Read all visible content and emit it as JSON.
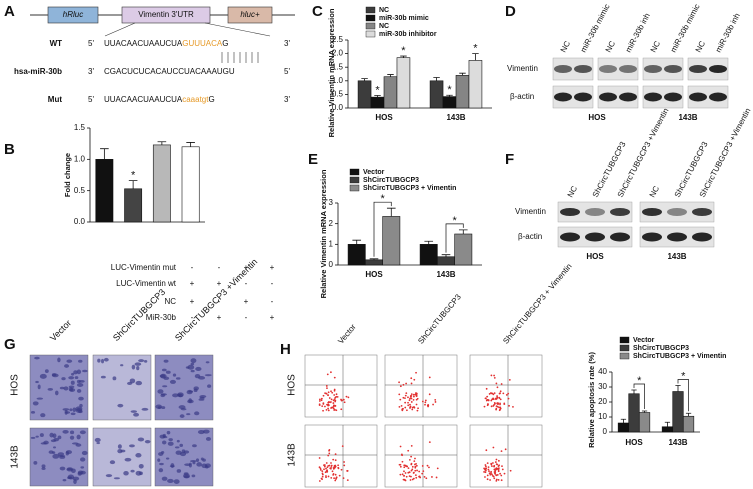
{
  "panel_letters": [
    "A",
    "B",
    "C",
    "D",
    "E",
    "F",
    "G",
    "H"
  ],
  "panel_a": {
    "construct": [
      "hRluc",
      "Vimentin 3'UTR",
      "hluc+"
    ],
    "rows": [
      {
        "label": "WT",
        "left": "5'",
        "sequence": [
          "UUACAACUAAUCUA",
          "GUUUACA",
          "G"
        ],
        "right": "3'"
      },
      {
        "label": "hsa-miR-30b",
        "left": "3'",
        "sequence": [
          "CGACUCUCACAUCCUACAAAUGU"
        ],
        "right": "5'"
      },
      {
        "label": "Mut",
        "left": "5'",
        "sequence": [
          "UUACAACUAAUCUA",
          "caaatgt",
          "G"
        ],
        "right": "3'"
      }
    ]
  },
  "panel_d": {
    "lanes": [
      "NC",
      "miR-30b mimic",
      "NC",
      "miR-30b inh",
      "NC",
      "miR-30b mimic",
      "NC",
      "miR-30b inh"
    ],
    "rows": [
      "Vimentin",
      "β-actin"
    ],
    "cells": [
      "HOS",
      "143B"
    ]
  },
  "panel_f": {
    "lanes": [
      "NC",
      "ShCircTUBGCP3",
      "ShCircTUBGCP3 +Vimentin",
      "NC",
      "ShCircTUBGCP3",
      "ShCircTUBGCP3 +Vimentin"
    ],
    "rows": [
      "Vimentin",
      "β-actin"
    ],
    "cells": [
      "HOS",
      "143B"
    ]
  },
  "panel_g": {
    "columns": [
      "Vector",
      "ShCircTUBGCP3",
      "ShCircTUBGCP3 +Vimentin"
    ],
    "rows": [
      "HOS",
      "143B"
    ]
  },
  "panel_h": {
    "columns": [
      "Vector",
      "ShCircTUBGCP3",
      "ShCircTUBGCP3 + Vimentin"
    ],
    "rows": [
      "HOS",
      "143B"
    ]
  },
  "chart_data": [
    {
      "type": "bar",
      "y_label": "Fold change",
      "values": [
        1.0,
        0.53,
        1.23,
        1.2
      ],
      "errors": [
        0.17,
        0.13,
        0.05,
        0.07
      ],
      "colors": [
        "#111111",
        "#444444",
        "#b8b8b8",
        "#ffffff"
      ],
      "significance": [
        null,
        "*",
        null,
        null
      ],
      "ylim": [
        0,
        1.5
      ],
      "yticks": [
        {
          "value": 0,
          "label": "0.0"
        },
        0.5,
        {
          "value": 1,
          "label": "1.0"
        },
        1.5
      ],
      "conditions": [
        {
          "label": "LUC-Vimentin mut",
          "signs": [
            "-",
            "-",
            "+",
            "+"
          ]
        },
        {
          "label": "LUC-Vimentin wt",
          "signs": [
            "+",
            "+",
            "-",
            "-"
          ]
        },
        {
          "label": "NC",
          "signs": [
            "+",
            "-",
            "+",
            "-"
          ]
        },
        {
          "label": "MiR-30b",
          "signs": [
            "-",
            "+",
            "-",
            "+"
          ]
        }
      ]
    },
    {
      "type": "bar",
      "y_label": "Relative Vimentin mRNA expression",
      "categories": [
        "HOS",
        "143B"
      ],
      "series": [
        {
          "name": "NC",
          "color": "#3c3c3c",
          "values": [
            1.0,
            1.0
          ],
          "errors": [
            0.08,
            0.12
          ]
        },
        {
          "name": "miR-30b mimic",
          "color": "#111111",
          "values": [
            0.4,
            0.42
          ],
          "errors": [
            0.06,
            0.05
          ],
          "significance": [
            "*",
            "*"
          ]
        },
        {
          "name": "NC",
          "color": "#858585",
          "values": [
            1.15,
            1.2
          ],
          "errors": [
            0.08,
            0.08
          ]
        },
        {
          "name": "miR-30b inhibitor",
          "color": "#dcdcdc",
          "values": [
            1.85,
            1.75
          ],
          "errors": [
            0.06,
            0.25
          ],
          "significance": [
            "*",
            "*"
          ]
        }
      ],
      "ylim": [
        0,
        2.5
      ],
      "yticks": [
        {
          "value": 0,
          "label": "0.0"
        },
        0.5,
        {
          "value": 1,
          "label": "1.0"
        },
        1.5,
        {
          "value": 2,
          "label": "2.0"
        },
        2.5
      ]
    },
    {
      "type": "bar",
      "y_label": "Relative Vimentin mRNA expression",
      "categories": [
        "HOS",
        "143B"
      ],
      "series": [
        {
          "name": "Vector",
          "color": "#111111",
          "values": [
            1.0,
            1.0
          ],
          "errors": [
            0.2,
            0.15
          ]
        },
        {
          "name": "ShCircTUBGCP3",
          "color": "#3c3c3c",
          "values": [
            0.25,
            0.4
          ],
          "errors": [
            0.05,
            0.1
          ]
        },
        {
          "name": "ShCircTUBGCP3 + Vimentin",
          "color": "#8a8a8a",
          "values": [
            2.35,
            1.5
          ],
          "errors": [
            0.4,
            0.2
          ],
          "significance": [
            "*",
            "*"
          ]
        }
      ],
      "ylim": [
        0,
        3
      ],
      "yticks": [
        0,
        1,
        2,
        3
      ]
    },
    {
      "type": "bar",
      "y_label": "Relative apoptosis rate (%)",
      "categories": [
        "HOS",
        "143B"
      ],
      "series": [
        {
          "name": "Vector",
          "color": "#111111",
          "values": [
            6,
            3.5
          ],
          "errors": [
            2.5,
            3
          ]
        },
        {
          "name": "ShCircTUBGCP3",
          "color": "#3c3c3c",
          "values": [
            25.5,
            27
          ],
          "errors": [
            2.5,
            4
          ]
        },
        {
          "name": "ShCircTUBGCP3 + Vimentin",
          "color": "#8a8a8a",
          "values": [
            13,
            10.5
          ],
          "errors": [
            1,
            2
          ],
          "significance": [
            "*",
            "*"
          ]
        }
      ],
      "ylim": [
        0,
        40
      ],
      "yticks": [
        0,
        10,
        20,
        30,
        40
      ]
    }
  ]
}
